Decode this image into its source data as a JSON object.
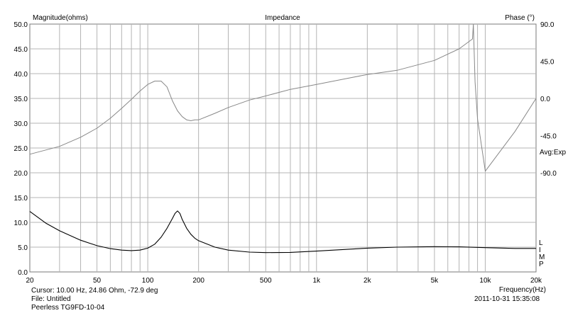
{
  "chart_data": {
    "type": "line",
    "title": "Impedance",
    "ylabel_left": "Magnitude(ohms)",
    "ylabel_right": "Phase (°)",
    "xlabel": "Frequency(Hz)",
    "x_scale": "log",
    "xlim": [
      20,
      20000
    ],
    "ylim_left": [
      0,
      50
    ],
    "ylim_right": [
      -210,
      90
    ],
    "x_ticks": [
      20,
      50,
      100,
      200,
      500,
      1000,
      2000,
      5000,
      10000,
      20000
    ],
    "x_tick_labels": [
      "20",
      "50",
      "100",
      "200",
      "500",
      "1k",
      "2k",
      "5k",
      "10k",
      "20k"
    ],
    "left_ticks": [
      0,
      5,
      10,
      15,
      20,
      25,
      30,
      35,
      40,
      45,
      50
    ],
    "left_tick_labels": [
      "0.0",
      "5.0",
      "10.0",
      "15.0",
      "20.0",
      "25.0",
      "30.0",
      "35.0",
      "40.0",
      "45.0",
      "50.0"
    ],
    "right_ticks": [
      90,
      45,
      0,
      -45,
      -90
    ],
    "right_tick_labels": [
      "90.0",
      "45.0",
      "0.0",
      "-45.0",
      "-90.0"
    ],
    "right_note": "Avg:Exp",
    "grid": true,
    "legend_letters": [
      "L",
      "I",
      "M",
      "P"
    ],
    "series": [
      {
        "axis": "left",
        "color": "#000000",
        "x": [
          20,
          25,
          30,
          40,
          50,
          60,
          70,
          80,
          90,
          100,
          110,
          120,
          130,
          140,
          145,
          150,
          155,
          160,
          170,
          180,
          190,
          200,
          250,
          300,
          400,
          500,
          700,
          1000,
          2000,
          3000,
          5000,
          7000,
          10000,
          15000,
          20000
        ],
        "values": [
          12.2,
          9.8,
          8.3,
          6.4,
          5.3,
          4.7,
          4.4,
          4.3,
          4.4,
          4.8,
          5.6,
          7.0,
          8.8,
          10.8,
          11.8,
          12.3,
          11.8,
          10.6,
          8.8,
          7.6,
          6.8,
          6.3,
          5.0,
          4.4,
          4.0,
          3.9,
          3.95,
          4.2,
          4.8,
          5.0,
          5.1,
          5.05,
          4.9,
          4.75,
          4.75
        ]
      },
      {
        "axis": "right",
        "color": "#888888",
        "x": [
          20,
          30,
          40,
          50,
          60,
          70,
          80,
          90,
          100,
          110,
          120,
          130,
          140,
          150,
          160,
          170,
          180,
          190,
          200,
          250,
          300,
          400,
          500,
          700,
          1000,
          1500,
          2000,
          3000,
          5000,
          7000,
          8400,
          8500,
          8700,
          9000,
          10000,
          15000,
          20000
        ],
        "values": [
          -67.5,
          -58,
          -47,
          -36,
          -24,
          -12,
          -1,
          9,
          17,
          21,
          21,
          14,
          -3,
          -15,
          -22,
          -26,
          -27,
          -26,
          -26,
          -18,
          -11,
          -2,
          3,
          11,
          17,
          24,
          29,
          34,
          46,
          60,
          72,
          90,
          20,
          -25,
          -88,
          -40,
          0
        ]
      }
    ]
  },
  "info": {
    "cursor": "Cursor: 10.00 Hz, 24.86 Ohm, -72.9 deg",
    "file": "File: Untitled",
    "name": "Peerless TG9FD-10-04",
    "timestamp": "2011-10-31 15:35:08"
  }
}
